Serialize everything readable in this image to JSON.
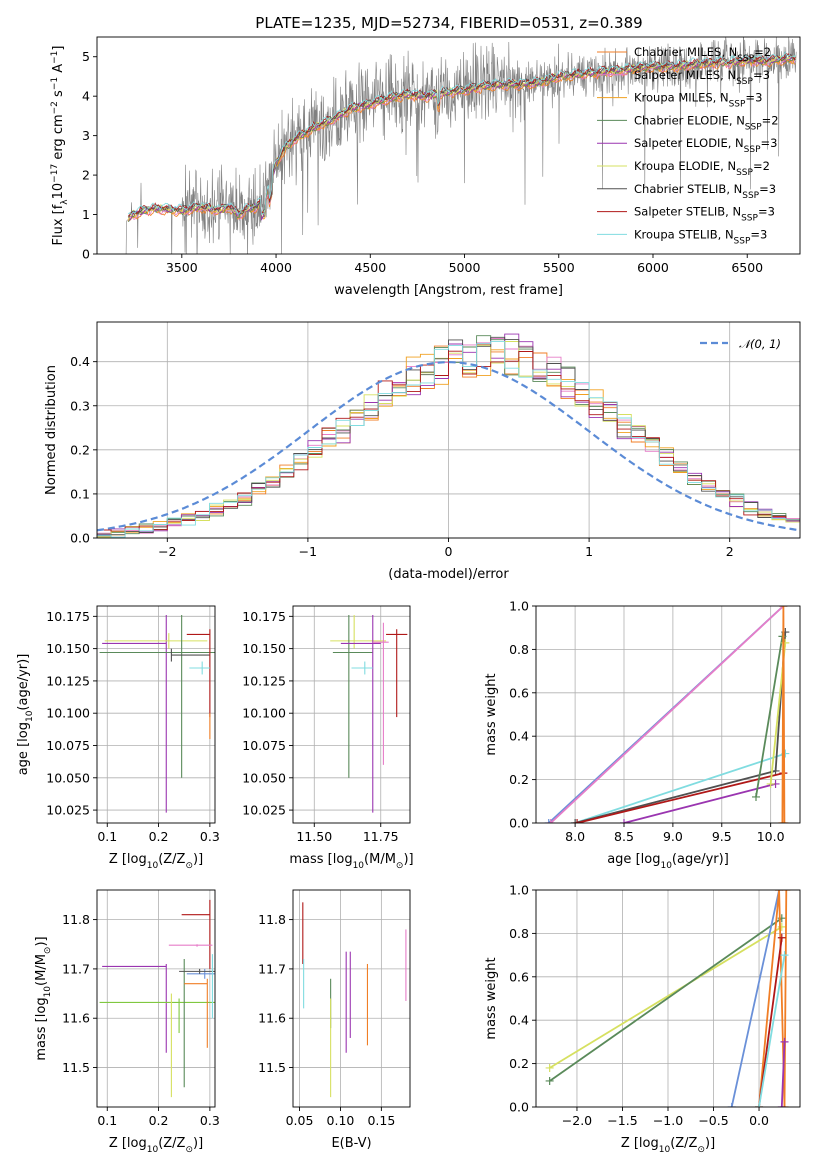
{
  "figure": {
    "title": "PLATE=1235, MJD=52734, FIBERID=0531, z=0.389"
  },
  "colors": {
    "Chabrier MILES": "#f07e26",
    "Salpeter MILES": "#e67dc8",
    "Kroupa MILES": "#f0a020",
    "Chabrier ELODIE": "#5a8a5a",
    "Salpeter ELODIE": "#9a35b0",
    "Kroupa ELODIE": "#d6e060",
    "Chabrier STELIB": "#505050",
    "Salpeter STELIB": "#b01818",
    "Kroupa STELIB": "#80dce0",
    "data": "#808080",
    "normal": "#5b8bd6",
    "blue": "#6a90d8",
    "green_alt": "#80c840"
  },
  "chart_data": [
    {
      "id": "spectrum",
      "type": "line",
      "title": "PLATE=1235, MJD=52734, FIBERID=0531, z=0.389",
      "xlabel": "wavelength [Angstrom, rest frame]",
      "ylabel_main": "Flux [f",
      "ylabel_sub": "λ",
      "ylabel_rest": "10",
      "ylabel_exp": "−17",
      "ylabel_tail": " erg cm",
      "ylabel_exp2": "−2",
      "ylabel_tail2": " s",
      "ylabel_exp3": "−1",
      "ylabel_tail3": " A",
      "ylabel_exp4": "−1",
      "ylabel_end": "]",
      "xlim": [
        3050,
        6780
      ],
      "ylim": [
        0,
        5.5
      ],
      "xticks": [
        3500,
        4000,
        4500,
        5000,
        5500,
        6000,
        6500
      ],
      "yticks": [
        0,
        1,
        2,
        3,
        4,
        5
      ],
      "model_anchors": {
        "x": [
          3200,
          3240,
          3300,
          3350,
          3400,
          3450,
          3500,
          3550,
          3600,
          3650,
          3700,
          3750,
          3800,
          3850,
          3900,
          3950,
          4000,
          4050,
          4100,
          4200,
          4300,
          4400,
          4500,
          4600,
          4700,
          4800,
          4900,
          5000,
          5100,
          5200,
          5300,
          5400,
          5500,
          5600,
          5700,
          5800,
          5900,
          6000,
          6100,
          6200,
          6300,
          6400,
          6500,
          6600,
          6700
        ],
        "y": [
          0.8,
          1.0,
          1.1,
          1.15,
          1.15,
          1.12,
          1.1,
          1.15,
          1.2,
          1.15,
          1.1,
          1.2,
          1.0,
          1.15,
          1.2,
          1.5,
          2.3,
          2.7,
          2.9,
          3.2,
          3.4,
          3.7,
          3.8,
          3.95,
          4.05,
          4.0,
          4.1,
          4.15,
          4.25,
          4.3,
          4.3,
          4.35,
          4.5,
          4.55,
          4.6,
          4.65,
          4.7,
          4.75,
          4.75,
          4.8,
          4.85,
          4.85,
          4.9,
          4.9,
          4.95
        ]
      },
      "legend_position": "right",
      "series": [
        {
          "name": "Chabrier MILES",
          "nssp": "2"
        },
        {
          "name": "Salpeter MILES",
          "nssp": "3"
        },
        {
          "name": "Kroupa MILES",
          "nssp": "3"
        },
        {
          "name": "Chabrier ELODIE",
          "nssp": "2"
        },
        {
          "name": "Salpeter ELODIE",
          "nssp": "3"
        },
        {
          "name": "Kroupa ELODIE",
          "nssp": "2"
        },
        {
          "name": "Chabrier STELIB",
          "nssp": "3"
        },
        {
          "name": "Salpeter STELIB",
          "nssp": "3"
        },
        {
          "name": "Kroupa STELIB",
          "nssp": "3"
        }
      ],
      "nssp_prefix": "N",
      "nssp_sub": "SSP",
      "grid": false
    },
    {
      "id": "residuals",
      "type": "histogram",
      "xlabel": "(data-model)/error",
      "ylabel": "Normed distribution",
      "xlim": [
        -2.5,
        2.5
      ],
      "ylim": [
        0,
        0.49
      ],
      "xticks": [
        -2,
        -1,
        0,
        1,
        2
      ],
      "yticks": [
        0.0,
        0.1,
        0.2,
        0.3,
        0.4
      ],
      "bin_width": 0.1,
      "legend_label": "𝒩(0, 1)",
      "legend_position": "top-right",
      "grid": true
    },
    {
      "id": "age-vs-z",
      "type": "scatter",
      "xlabel_main": "Z [log",
      "xlabel_sub": "10",
      "xlabel_rest": "(Z/Z",
      "xlabel_sub2": "⊙",
      "xlabel_end": ")]",
      "ylabel_main": "age  [log",
      "ylabel_sub": "10",
      "ylabel_rest": "(age/yr)]",
      "xlim": [
        0.08,
        0.31
      ],
      "ylim": [
        10.015,
        10.183
      ],
      "xticks": [
        "0.1",
        "0.2",
        "0.3"
      ],
      "xtick_values": [
        0.1,
        0.2,
        0.3
      ],
      "yticks": [
        "10.025",
        "10.050",
        "10.075",
        "10.100",
        "10.125",
        "10.150",
        "10.175"
      ],
      "ytick_values": [
        10.025,
        10.05,
        10.075,
        10.1,
        10.125,
        10.15,
        10.175
      ],
      "grid": true,
      "points": [
        {
          "series": "Salpeter ELODIE",
          "x": 0.215,
          "xerr": [
            0.125,
            0.0
          ],
          "y": 10.154,
          "yerr": [
            10.023,
            10.176
          ]
        },
        {
          "series": "Kroupa ELODIE",
          "x": 0.22,
          "xerr": [
            0.125,
            0.075
          ],
          "y": 10.156,
          "yerr": [
            10.15,
            10.162
          ]
        },
        {
          "series": "Chabrier ELODIE",
          "x": 0.245,
          "xerr": [
            0.16,
            0.065
          ],
          "y": 10.147,
          "yerr": [
            10.05,
            10.176
          ]
        },
        {
          "series": "Chabrier STELIB",
          "x": 0.225,
          "xerr": [
            0.0,
            0.075
          ],
          "y": 10.145,
          "yerr": [
            10.14,
            10.15
          ]
        },
        {
          "series": "Salpeter STELIB",
          "x": 0.3,
          "xerr": [
            0.045,
            0.0
          ],
          "y": 10.161,
          "yerr": [
            10.097,
            10.165
          ]
        },
        {
          "series": "Kroupa STELIB",
          "x": 0.285,
          "xerr": [
            0.025,
            0.015
          ],
          "y": 10.135,
          "yerr": [
            10.13,
            10.14
          ]
        },
        {
          "series": "Chabrier MILES",
          "x": 0.3,
          "xerr": [
            0.0,
            0.0
          ],
          "y": 10.09,
          "yerr": [
            10.08,
            10.1
          ]
        }
      ]
    },
    {
      "id": "age-vs-mass",
      "type": "scatter",
      "xlabel_main": "mass [log",
      "xlabel_sub": "10",
      "xlabel_rest": "(M/M",
      "xlabel_sub2": "⊙",
      "xlabel_end": ")]",
      "xlim": [
        11.42,
        11.86
      ],
      "ylim": [
        10.015,
        10.183
      ],
      "xticks": [
        "11.50",
        "11.75"
      ],
      "xtick_values": [
        11.5,
        11.75
      ],
      "yticks": [
        "10.025",
        "10.050",
        "10.075",
        "10.100",
        "10.125",
        "10.150",
        "10.175"
      ],
      "ytick_values": [
        10.025,
        10.05,
        10.075,
        10.1,
        10.125,
        10.15,
        10.175
      ],
      "grid": true,
      "points": [
        {
          "series": "Kroupa ELODIE",
          "x": 11.65,
          "xerr": [
            11.56,
            11.77
          ],
          "y": 10.156,
          "yerr": [
            10.15,
            10.176
          ]
        },
        {
          "series": "Chabrier ELODIE",
          "x": 11.63,
          "xerr": [
            11.57,
            11.72
          ],
          "y": 10.147,
          "yerr": [
            10.05,
            10.176
          ]
        },
        {
          "series": "Salpeter ELODIE",
          "x": 11.72,
          "xerr": [
            11.6,
            11.75
          ],
          "y": 10.154,
          "yerr": [
            10.023,
            10.176
          ]
        },
        {
          "series": "Salpeter STELIB",
          "x": 11.81,
          "xerr": [
            11.77,
            11.85
          ],
          "y": 10.161,
          "yerr": [
            10.097,
            10.165
          ]
        },
        {
          "series": "Kroupa STELIB",
          "x": 11.69,
          "xerr": [
            11.64,
            11.72
          ],
          "y": 10.135,
          "yerr": [
            10.13,
            10.14
          ]
        },
        {
          "series": "Salpeter MILES",
          "x": 11.76,
          "xerr": [
            11.72,
            11.78
          ],
          "y": 10.155,
          "yerr": [
            10.06,
            10.17
          ]
        }
      ]
    },
    {
      "id": "weight-vs-age",
      "type": "line",
      "xlabel_main": "age  [log",
      "xlabel_sub": "10",
      "xlabel_rest": "(age/yr)]",
      "ylabel": "mass weight",
      "xlim": [
        7.6,
        10.3
      ],
      "ylim": [
        0,
        1
      ],
      "xticks": [
        "8.0",
        "8.5",
        "9.0",
        "9.5",
        "10.0"
      ],
      "xtick_values": [
        8.0,
        8.5,
        9.0,
        9.5,
        10.0
      ],
      "yticks": [
        "0.0",
        "0.2",
        "0.4",
        "0.6",
        "0.8",
        "1.0"
      ],
      "ytick_values": [
        0.0,
        0.2,
        0.4,
        0.6,
        0.8,
        1.0
      ],
      "grid": true,
      "lines": [
        {
          "series": "blue",
          "x": [
            7.73,
            10.13
          ],
          "y": [
            0.0,
            1.0
          ]
        },
        {
          "series": "Salpeter MILES",
          "x": [
            7.75,
            10.13
          ],
          "y": [
            0.0,
            1.0
          ]
        },
        {
          "series": "Kroupa STELIB",
          "x": [
            8.0,
            10.15
          ],
          "y": [
            0.0,
            0.32
          ]
        },
        {
          "series": "Chabrier STELIB",
          "x": [
            8.0,
            10.05,
            10.15
          ],
          "y": [
            0.0,
            0.24,
            0.88
          ]
        },
        {
          "series": "Salpeter STELIB",
          "x": [
            8.02,
            10.13
          ],
          "y": [
            0.0,
            0.23
          ]
        },
        {
          "series": "Salpeter ELODIE",
          "x": [
            8.5,
            10.05
          ],
          "y": [
            0.0,
            0.18
          ]
        },
        {
          "series": "Chabrier ELODIE",
          "x": [
            9.85,
            10.12
          ],
          "y": [
            0.12,
            0.86
          ]
        },
        {
          "series": "Kroupa ELODIE",
          "x": [
            10.0,
            10.15
          ],
          "y": [
            0.18,
            0.83
          ]
        },
        {
          "series": "Chabrier MILES",
          "x": [
            10.12,
            10.13,
            10.14
          ],
          "y": [
            0.0,
            1.0,
            0.0
          ]
        }
      ]
    },
    {
      "id": "mass-vs-z",
      "type": "scatter",
      "xlabel_main": "Z [log",
      "xlabel_sub": "10",
      "xlabel_rest": "(Z/Z",
      "xlabel_sub2": "⊙",
      "xlabel_end": ")]",
      "ylabel_main": "mass [log",
      "ylabel_sub": "10",
      "ylabel_rest": "(M/M",
      "ylabel_sub2": "⊙",
      "ylabel_end": ")]",
      "xlim": [
        0.08,
        0.31
      ],
      "ylim": [
        11.42,
        11.86
      ],
      "xticks": [
        "0.1",
        "0.2",
        "0.3"
      ],
      "xtick_values": [
        0.1,
        0.2,
        0.3
      ],
      "yticks": [
        "11.5",
        "11.6",
        "11.7",
        "11.8"
      ],
      "ytick_values": [
        11.5,
        11.6,
        11.7,
        11.8
      ],
      "grid": true,
      "points": [
        {
          "series": "Salpeter ELODIE",
          "x": 0.215,
          "xerr": [
            0.125,
            0.0
          ],
          "y": 11.705,
          "yerr": [
            11.53,
            11.71
          ]
        },
        {
          "series": "green_alt",
          "x": 0.24,
          "xerr": [
            0.155,
            0.07
          ],
          "y": 11.632,
          "yerr": [
            11.57,
            11.64
          ]
        },
        {
          "series": "Kroupa ELODIE",
          "x": 0.225,
          "xerr": [
            0.0,
            0.0
          ],
          "y": 11.632,
          "yerr": [
            11.44,
            11.65
          ]
        },
        {
          "series": "Chabrier ELODIE",
          "x": 0.25,
          "xerr": [
            0.0,
            0.0
          ],
          "y": 11.632,
          "yerr": [
            11.46,
            11.72
          ]
        },
        {
          "series": "Salpeter STELIB",
          "x": 0.3,
          "xerr": [
            0.055,
            0.0
          ],
          "y": 11.81,
          "yerr": [
            11.7,
            11.84
          ]
        },
        {
          "series": "Salpeter MILES",
          "x": 0.275,
          "xerr": [
            0.055,
            0.03
          ],
          "y": 11.748,
          "yerr": [
            11.745,
            11.75
          ]
        },
        {
          "series": "blue",
          "x": 0.29,
          "xerr": [
            0.035,
            0.02
          ],
          "y": 11.69,
          "yerr": [
            11.68,
            11.7
          ]
        },
        {
          "series": "Chabrier STELIB",
          "x": 0.28,
          "xerr": [
            0.04,
            0.03
          ],
          "y": 11.695,
          "yerr": [
            11.69,
            11.7
          ]
        },
        {
          "series": "Chabrier MILES",
          "x": 0.295,
          "xerr": [
            0.045,
            0.0
          ],
          "y": 11.67,
          "yerr": [
            11.54,
            11.68
          ]
        },
        {
          "series": "Kroupa STELIB",
          "x": 0.305,
          "xerr": [
            0.0,
            0.0
          ],
          "y": 11.71,
          "yerr": [
            11.6,
            11.73
          ]
        }
      ]
    },
    {
      "id": "mass-vs-ebv",
      "type": "scatter",
      "xlabel": "E(B-V)",
      "xlim": [
        0.042,
        0.185
      ],
      "ylim": [
        11.42,
        11.86
      ],
      "xticks": [
        "0.05",
        "0.10",
        "0.15"
      ],
      "xtick_values": [
        0.05,
        0.1,
        0.15
      ],
      "yticks": [
        "11.5",
        "11.6",
        "11.7",
        "11.8"
      ],
      "ytick_values": [
        11.5,
        11.6,
        11.7,
        11.8
      ],
      "grid": true,
      "segments": [
        {
          "series": "Salpeter STELIB",
          "x": 0.054,
          "y": [
            11.71,
            11.835
          ]
        },
        {
          "series": "Kroupa STELIB",
          "x": 0.055,
          "y": [
            11.62,
            11.72
          ]
        },
        {
          "series": "Chabrier ELODIE",
          "x": 0.088,
          "y": [
            11.58,
            11.68
          ]
        },
        {
          "series": "Kroupa ELODIE",
          "x": 0.088,
          "y": [
            11.44,
            11.64
          ]
        },
        {
          "series": "Salpeter ELODIE",
          "x": 0.107,
          "y": [
            11.53,
            11.735
          ]
        },
        {
          "series": "Salpeter ELODIE",
          "x": 0.112,
          "y": [
            11.56,
            11.735
          ]
        },
        {
          "series": "Chabrier MILES",
          "x": 0.133,
          "y": [
            11.545,
            11.71
          ]
        },
        {
          "series": "Salpeter MILES",
          "x": 0.18,
          "y": [
            11.635,
            11.78
          ]
        }
      ]
    },
    {
      "id": "weight-vs-z",
      "type": "line",
      "xlabel_main": "Z [log",
      "xlabel_sub": "10",
      "xlabel_rest": "(Z/Z",
      "xlabel_sub2": "⊙",
      "xlabel_end": ")]",
      "ylabel": "mass weight",
      "xlim": [
        -2.45,
        0.45
      ],
      "ylim": [
        0,
        1
      ],
      "xticks": [
        "−2.0",
        "−1.5",
        "−1.0",
        "−0.5",
        "0.0"
      ],
      "xtick_values": [
        -2.0,
        -1.5,
        -1.0,
        -0.5,
        0.0
      ],
      "yticks": [
        "0.0",
        "0.2",
        "0.4",
        "0.6",
        "0.8",
        "1.0"
      ],
      "ytick_values": [
        0.0,
        0.2,
        0.4,
        0.6,
        0.8,
        1.0
      ],
      "grid": true,
      "lines": [
        {
          "series": "Kroupa ELODIE",
          "x": [
            -2.3,
            0.25
          ],
          "y": [
            0.18,
            0.83
          ]
        },
        {
          "series": "Chabrier ELODIE",
          "x": [
            -2.3,
            0.25
          ],
          "y": [
            0.12,
            0.87
          ]
        },
        {
          "series": "blue",
          "x": [
            -0.3,
            0.22
          ],
          "y": [
            0.0,
            1.0
          ]
        },
        {
          "series": "Chabrier MILES",
          "x": [
            0.0,
            0.22,
            0.28,
            0.3
          ],
          "y": [
            0.0,
            1.0,
            0.0,
            1.0
          ]
        },
        {
          "series": "Salpeter STELIB",
          "x": [
            0.0,
            0.25
          ],
          "y": [
            0.0,
            0.78
          ]
        },
        {
          "series": "Kroupa STELIB",
          "x": [
            0.0,
            0.28
          ],
          "y": [
            0.0,
            0.7
          ]
        },
        {
          "series": "Salpeter ELODIE",
          "x": [
            0.25,
            0.28
          ],
          "y": [
            0.0,
            0.3
          ]
        }
      ]
    }
  ]
}
